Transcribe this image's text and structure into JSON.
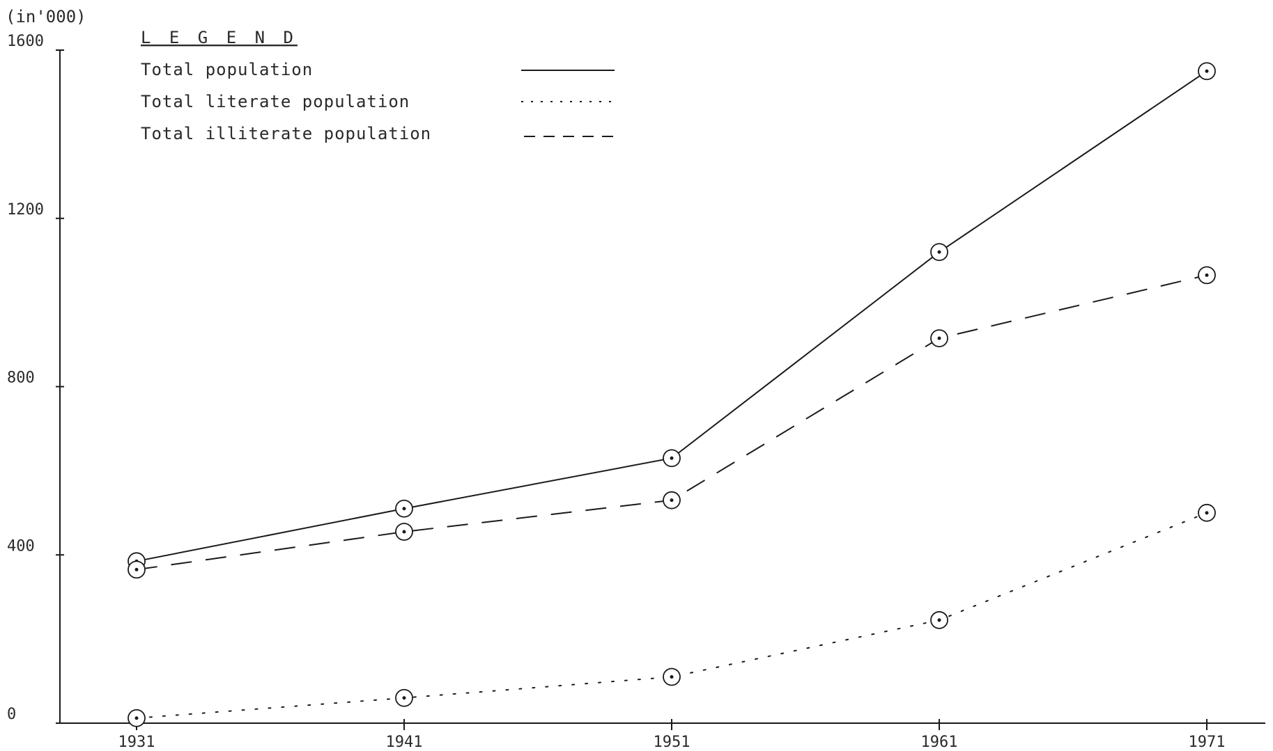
{
  "chart_data": {
    "type": "line",
    "unit_label": "(in'000)",
    "categories": [
      "1931",
      "1941",
      "1951",
      "1961",
      "1971"
    ],
    "y_ticks": [
      "0",
      "400",
      "800",
      "1200",
      "1600"
    ],
    "ylim": [
      0,
      1600
    ],
    "grid": false,
    "legend": {
      "title": "L E G E N D",
      "placement": "top-left"
    },
    "series": [
      {
        "name": "Total population",
        "style": "solid",
        "values": [
          385,
          510,
          630,
          1120,
          1550
        ]
      },
      {
        "name": "Total literate population",
        "style": "dotted",
        "values": [
          12,
          60,
          110,
          245,
          500
        ]
      },
      {
        "name": "Total illiterate population",
        "style": "dashed",
        "values": [
          365,
          455,
          530,
          915,
          1065
        ]
      }
    ],
    "colors": {
      "ink": "#1a1a1a",
      "paper": "#ffffff"
    }
  }
}
